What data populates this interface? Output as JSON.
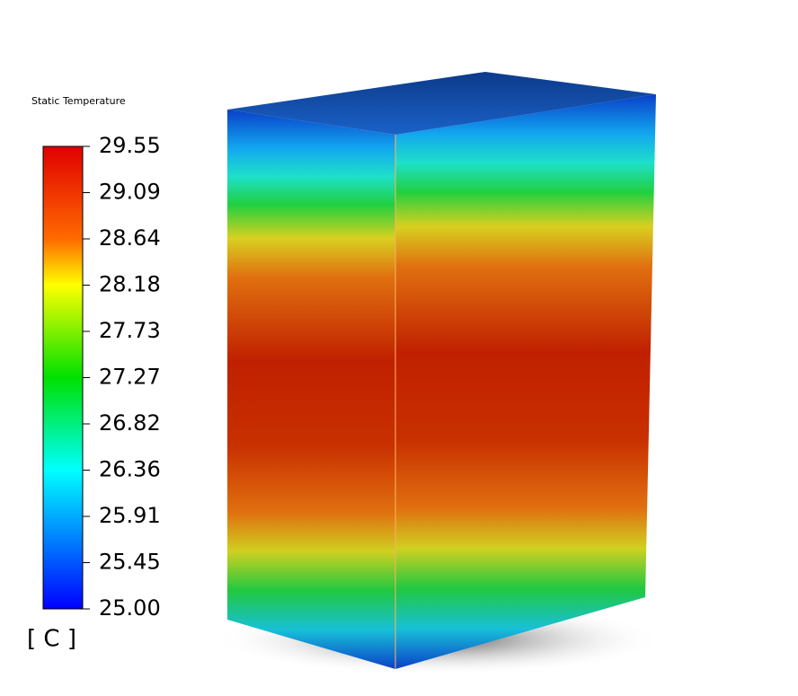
{
  "legend": {
    "title": "Static Temperature",
    "labels": [
      "29.55",
      "29.09",
      "28.64",
      "28.18",
      "27.73",
      "27.27",
      "26.82",
      "26.36",
      "25.91",
      "25.45",
      "25.00"
    ],
    "unit": "[ C ]"
  }
}
